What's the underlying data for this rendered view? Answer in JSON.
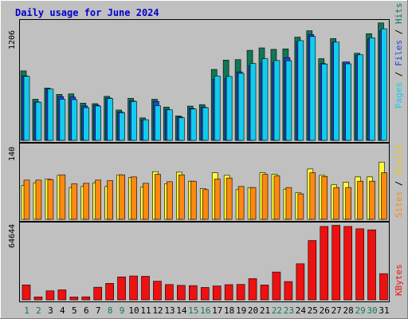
{
  "colors": {
    "background": "#c0c0c0",
    "hits": "#117755",
    "files": "#2244dd",
    "pages": "#11ccee",
    "visits": "#ffff33",
    "sites": "#ff8811",
    "kbytes": "#ee1111",
    "title": "#0000cc",
    "weekend_day": "#117755",
    "weekday": "#000000"
  },
  "chart_data": [
    {
      "type": "bar",
      "title": "Daily usage for June 2024",
      "ymax_label": "1206",
      "ylim": [
        0,
        1206
      ],
      "legend": [
        "Pages",
        "Files",
        "Hits"
      ],
      "categories": [
        "1",
        "2",
        "3",
        "4",
        "5",
        "6",
        "7",
        "8",
        "9",
        "10",
        "11",
        "12",
        "13",
        "14",
        "15",
        "16",
        "17",
        "18",
        "19",
        "20",
        "21",
        "22",
        "23",
        "24",
        "25",
        "26",
        "27",
        "28",
        "29",
        "30",
        "31"
      ],
      "series": [
        {
          "name": "Hits",
          "values": [
            710,
            420,
            535,
            470,
            475,
            380,
            375,
            450,
            310,
            430,
            230,
            420,
            340,
            250,
            350,
            365,
            725,
            820,
            825,
            920,
            945,
            930,
            935,
            1055,
            1120,
            835,
            1040,
            800,
            890,
            1090,
            1200
          ]
        },
        {
          "name": "Files",
          "values": [
            658,
            392,
            522,
            447,
            442,
            352,
            360,
            433,
            290,
            403,
            210,
            398,
            312,
            238,
            325,
            338,
            625,
            630,
            700,
            760,
            790,
            793,
            846,
            1005,
            1081,
            785,
            1002,
            802,
            865,
            1035,
            1120
          ]
        },
        {
          "name": "Pages",
          "values": [
            654,
            390,
            524,
            420,
            416,
            334,
            351,
            428,
            282,
            398,
            211,
            355,
            312,
            231,
            320,
            334,
            658,
            653,
            685,
            786,
            835,
            816,
            814,
            1019,
            1061,
            780,
            1004,
            782,
            874,
            1048,
            1140
          ]
        }
      ]
    },
    {
      "type": "bar",
      "ymax_label": "140",
      "ylim": [
        0,
        140
      ],
      "legend": [
        "Sites",
        "Visits"
      ],
      "categories": [
        "1",
        "2",
        "3",
        "4",
        "5",
        "6",
        "7",
        "8",
        "9",
        "10",
        "11",
        "12",
        "13",
        "14",
        "15",
        "16",
        "17",
        "18",
        "19",
        "20",
        "21",
        "22",
        "23",
        "24",
        "25",
        "26",
        "27",
        "28",
        "29",
        "30",
        "31"
      ],
      "series": [
        {
          "name": "Visits",
          "values": [
            64,
            69,
            76,
            83,
            60,
            62,
            69,
            62,
            84,
            79,
            61,
            90,
            67,
            89,
            72,
            58,
            88,
            83,
            56,
            60,
            88,
            85,
            57,
            50,
            95,
            83,
            65,
            70,
            80,
            80,
            108
          ]
        },
        {
          "name": "Sites",
          "values": [
            74,
            74,
            75,
            84,
            67,
            68,
            74,
            73,
            84,
            80,
            68,
            85,
            71,
            84,
            72,
            56,
            76,
            78,
            62,
            60,
            85,
            82,
            60,
            48,
            88,
            81,
            60,
            60,
            72,
            72,
            88
          ]
        }
      ]
    },
    {
      "type": "bar",
      "ymax_label": "64644",
      "ylim": [
        0,
        64644
      ],
      "legend": [
        "KBytes"
      ],
      "categories": [
        "1",
        "2",
        "3",
        "4",
        "5",
        "6",
        "7",
        "8",
        "9",
        "10",
        "11",
        "12",
        "13",
        "14",
        "15",
        "16",
        "17",
        "18",
        "19",
        "20",
        "21",
        "22",
        "23",
        "24",
        "25",
        "26",
        "27",
        "28",
        "29",
        "30",
        "31"
      ],
      "series": [
        {
          "name": "KBytes",
          "values": [
            12900,
            2550,
            7800,
            8600,
            2450,
            2600,
            10900,
            14200,
            19800,
            20600,
            20300,
            16100,
            13200,
            12500,
            12300,
            10700,
            12000,
            13100,
            13300,
            18300,
            12800,
            24000,
            15800,
            31100,
            51200,
            63300,
            64300,
            63300,
            61300,
            60400,
            22600
          ]
        }
      ]
    }
  ],
  "x_axis": {
    "labels": [
      "1",
      "2",
      "3",
      "4",
      "5",
      "6",
      "7",
      "8",
      "9",
      "10",
      "11",
      "12",
      "13",
      "14",
      "15",
      "16",
      "17",
      "18",
      "19",
      "20",
      "21",
      "22",
      "23",
      "24",
      "25",
      "26",
      "27",
      "28",
      "29",
      "30",
      "31"
    ],
    "weekend": [
      1,
      2,
      8,
      9,
      15,
      16,
      22,
      23,
      29,
      30
    ]
  }
}
